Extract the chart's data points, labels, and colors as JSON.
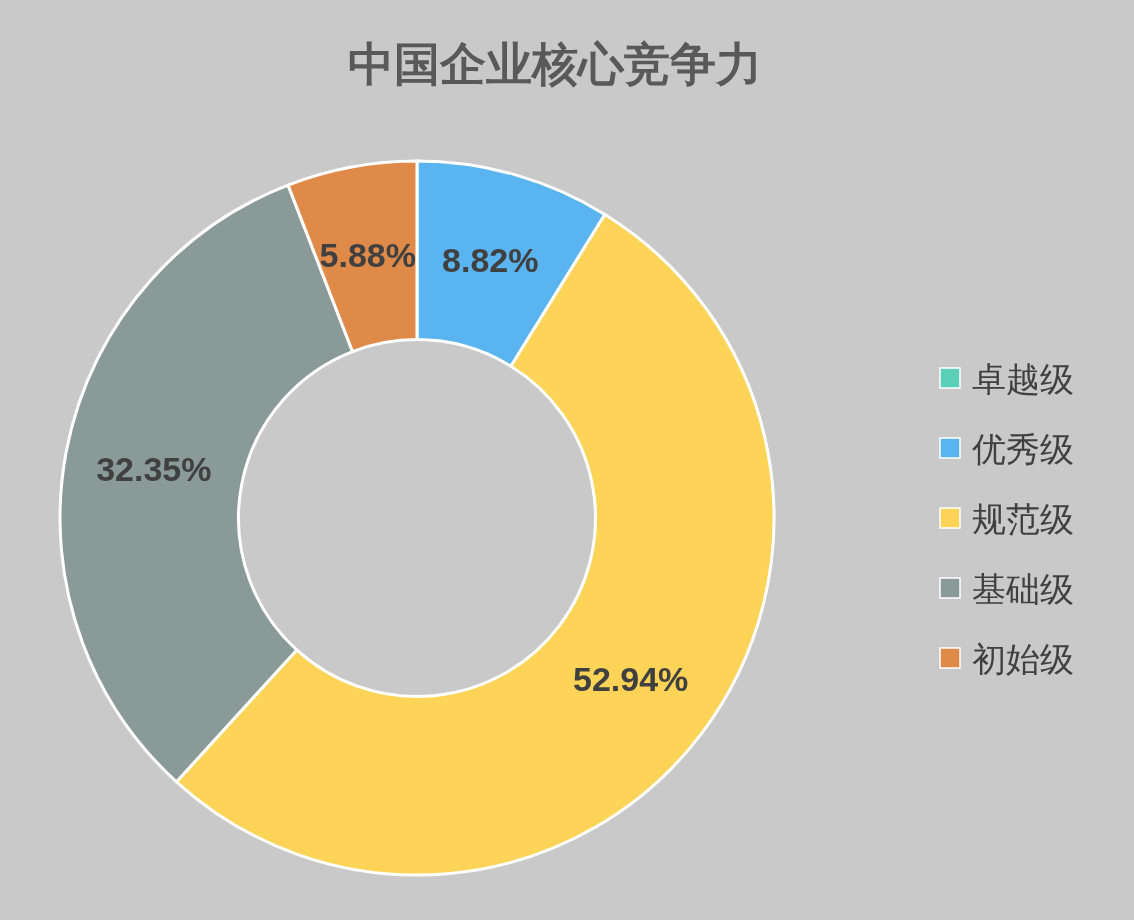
{
  "chart_data": {
    "type": "donut",
    "title": "中国企业核心竞争力",
    "categories": [
      "卓越级",
      "优秀级",
      "规范级",
      "基础级",
      "初始级"
    ],
    "values": [
      0,
      8.82,
      52.94,
      32.35,
      5.88
    ],
    "colors": [
      "#5ccfb8",
      "#5ab4f0",
      "#fdd457",
      "#8a9a98",
      "#e08a4a"
    ],
    "value_labels": [
      null,
      "8.82%",
      "52.94%",
      "32.35%",
      "5.88%"
    ],
    "legend": "right"
  }
}
